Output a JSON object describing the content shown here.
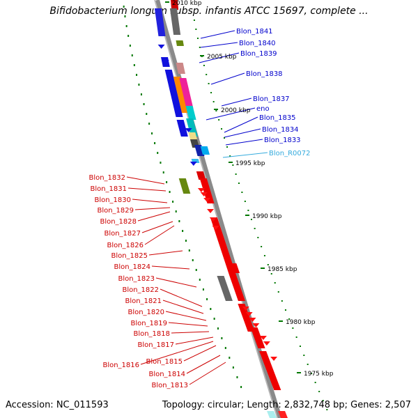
{
  "header": {
    "title": "Bifidobacterium longum subsp. infantis ATCC 15697, complete ..."
  },
  "footer": {
    "accession": "Accession: NC_011593",
    "stats": "Topology: circular; Length: 2,832,748 bp; Genes: 2,507"
  },
  "colors": {
    "forward_label": "#cc0000",
    "reverse_label": "#0000cc",
    "rna_label": "#33aadd",
    "backbone": "#888888",
    "tick": "#007700"
  },
  "scale": [
    "2010 kbp",
    "2005 kbp",
    "2000 kbp",
    "1995 kbp",
    "1990 kbp",
    "1985 kbp",
    "1980 kbp",
    "1975 kbp"
  ],
  "genes_right": [
    {
      "label": "Blon_1841",
      "color": "#0000cc"
    },
    {
      "label": "Blon_1840",
      "color": "#0000cc"
    },
    {
      "label": "Blon_1839",
      "color": "#0000cc"
    },
    {
      "label": "Blon_1838",
      "color": "#0000cc"
    },
    {
      "label": "Blon_1837",
      "color": "#0000cc"
    },
    {
      "label": "eno",
      "color": "#0000cc"
    },
    {
      "label": "Blon_1835",
      "color": "#0000cc"
    },
    {
      "label": "Blon_1834",
      "color": "#0000cc"
    },
    {
      "label": "Blon_1833",
      "color": "#0000cc"
    },
    {
      "label": "Blon_R0072",
      "color": "#33aadd"
    }
  ],
  "genes_left": [
    "Blon_1832",
    "Blon_1831",
    "Blon_1830",
    "Blon_1829",
    "Blon_1828",
    "Blon_1827",
    "Blon_1826",
    "Blon_1825",
    "Blon_1824",
    "Blon_1823",
    "Blon_1822",
    "Blon_1821",
    "Blon_1820",
    "Blon_1819",
    "Blon_1818",
    "Blon_1817",
    "Blon_1816",
    "Blon_1815",
    "Blon_1814",
    "Blon_1813"
  ]
}
